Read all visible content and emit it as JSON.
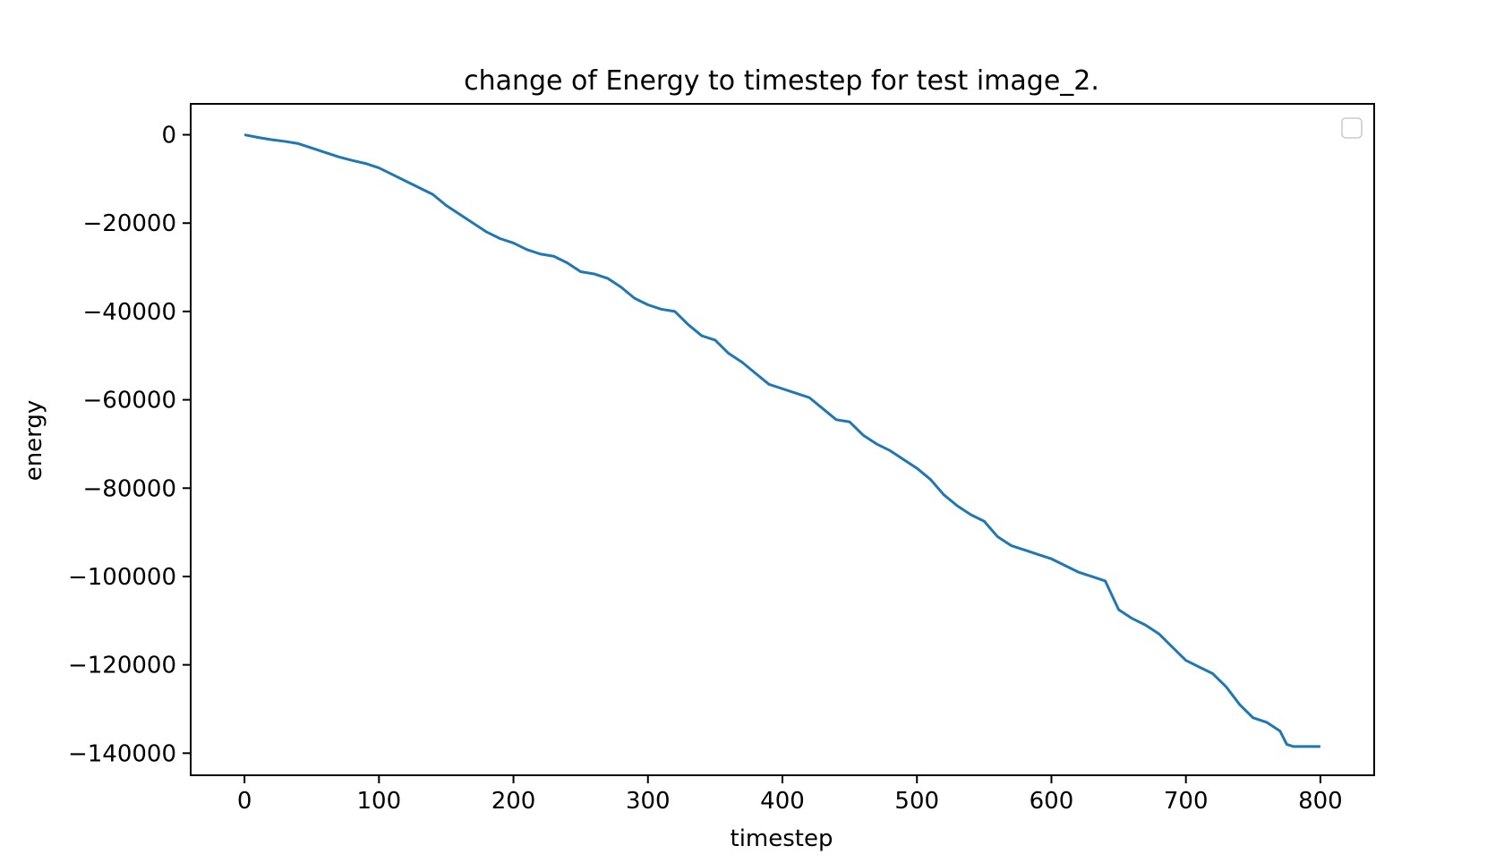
{
  "chart_data": {
    "type": "line",
    "title": "change of Energy to timestep for test image_2.",
    "xlabel": "timestep",
    "ylabel": "energy",
    "xlim": [
      -40,
      840
    ],
    "ylim": [
      -145000,
      7000
    ],
    "xticks": [
      0,
      100,
      200,
      300,
      400,
      500,
      600,
      700,
      800
    ],
    "yticks": [
      0,
      -20000,
      -40000,
      -60000,
      -80000,
      -100000,
      -120000,
      -140000
    ],
    "xtick_labels": [
      "0",
      "100",
      "200",
      "300",
      "400",
      "500",
      "600",
      "700",
      "800"
    ],
    "ytick_labels": [
      "0",
      "−20000",
      "−40000",
      "−60000",
      "−80000",
      "−100000",
      "−120000",
      "−140000"
    ],
    "grid": false,
    "legend": {
      "placement": "upper right",
      "entries": []
    },
    "colors": {
      "line": "#1f77b4",
      "axes": "#000000",
      "legend_border": "#cccccc"
    },
    "series": [
      {
        "x": [
          0,
          10,
          20,
          30,
          40,
          50,
          60,
          70,
          80,
          90,
          100,
          110,
          120,
          130,
          140,
          150,
          160,
          170,
          180,
          190,
          200,
          210,
          220,
          230,
          240,
          250,
          260,
          270,
          280,
          290,
          300,
          310,
          320,
          330,
          340,
          350,
          360,
          370,
          380,
          390,
          400,
          410,
          420,
          430,
          440,
          450,
          460,
          470,
          480,
          490,
          500,
          510,
          520,
          530,
          540,
          550,
          560,
          570,
          580,
          590,
          600,
          610,
          620,
          630,
          640,
          650,
          660,
          670,
          680,
          690,
          700,
          710,
          720,
          730,
          740,
          750,
          760,
          770,
          775,
          780,
          790,
          800
        ],
        "y": [
          0,
          -600,
          -1100,
          -1500,
          -2000,
          -3000,
          -4000,
          -5000,
          -5800,
          -6500,
          -7500,
          -9000,
          -10500,
          -12000,
          -13500,
          -16000,
          -18000,
          -20000,
          -22000,
          -23500,
          -24500,
          -26000,
          -27000,
          -27500,
          -29000,
          -31000,
          -31500,
          -32500,
          -34500,
          -37000,
          -38500,
          -39500,
          -40000,
          -43000,
          -45500,
          -46500,
          -49500,
          -51500,
          -54000,
          -56500,
          -57500,
          -58500,
          -59500,
          -62000,
          -64500,
          -65000,
          -68000,
          -70000,
          -71500,
          -73500,
          -75500,
          -78000,
          -81500,
          -84000,
          -86000,
          -87500,
          -91000,
          -93000,
          -94000,
          -95000,
          -96000,
          -97500,
          -99000,
          -100000,
          -101000,
          -107500,
          -109500,
          -111000,
          -113000,
          -116000,
          -119000,
          -120500,
          -122000,
          -125000,
          -129000,
          -132000,
          -133000,
          -135000,
          -138000,
          -138500,
          -138500,
          -138500
        ]
      }
    ]
  }
}
